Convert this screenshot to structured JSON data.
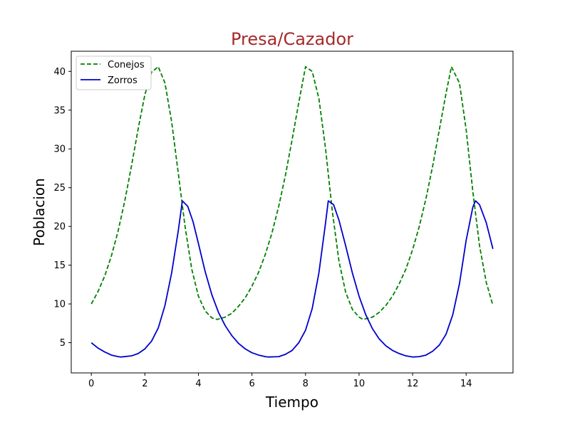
{
  "chart_data": {
    "type": "line",
    "title": "Presa/Cazador",
    "title_color": "#a52a2a",
    "xlabel": "Tiempo",
    "ylabel": "Poblacion",
    "xlim": [
      -0.75,
      15.75
    ],
    "ylim": [
      1.1,
      42.6
    ],
    "xticks": [
      0,
      2,
      4,
      6,
      8,
      10,
      12,
      14
    ],
    "yticks": [
      5,
      10,
      15,
      20,
      25,
      30,
      35,
      40
    ],
    "grid": false,
    "legend_position": "top-left",
    "series": [
      {
        "name": "Conejos",
        "color": "#008000",
        "style": "dashed",
        "points": [
          [
            0,
            10.0
          ],
          [
            0.25,
            11.6
          ],
          [
            0.5,
            13.6
          ],
          [
            0.75,
            16.2
          ],
          [
            1.0,
            19.4
          ],
          [
            1.25,
            23.3
          ],
          [
            1.5,
            27.8
          ],
          [
            1.75,
            32.6
          ],
          [
            2.0,
            37.0
          ],
          [
            2.25,
            39.9
          ],
          [
            2.5,
            40.6
          ],
          [
            2.75,
            38.5
          ],
          [
            3.0,
            33.5
          ],
          [
            3.25,
            26.8
          ],
          [
            3.5,
            20.0
          ],
          [
            3.75,
            14.5
          ],
          [
            4.0,
            11.0
          ],
          [
            4.25,
            9.1
          ],
          [
            4.5,
            8.2
          ],
          [
            4.7,
            8.0
          ],
          [
            5.0,
            8.3
          ],
          [
            5.25,
            8.8
          ],
          [
            5.5,
            9.7
          ],
          [
            5.75,
            10.8
          ],
          [
            6.0,
            12.3
          ],
          [
            6.25,
            14.1
          ],
          [
            6.5,
            16.4
          ],
          [
            6.75,
            19.2
          ],
          [
            7.0,
            22.6
          ],
          [
            7.25,
            26.6
          ],
          [
            7.5,
            31.2
          ],
          [
            7.75,
            36.0
          ],
          [
            8.0,
            40.6
          ],
          [
            8.25,
            40.0
          ],
          [
            8.5,
            36.5
          ],
          [
            8.75,
            30.0
          ],
          [
            9.0,
            22.0
          ],
          [
            9.25,
            15.5
          ],
          [
            9.5,
            11.5
          ],
          [
            9.75,
            9.3
          ],
          [
            10.0,
            8.3
          ],
          [
            10.15,
            8.0
          ],
          [
            10.5,
            8.3
          ],
          [
            10.75,
            8.9
          ],
          [
            11.0,
            9.8
          ],
          [
            11.25,
            11.0
          ],
          [
            11.5,
            12.6
          ],
          [
            11.75,
            14.5
          ],
          [
            12.0,
            17.0
          ],
          [
            12.25,
            20.0
          ],
          [
            12.5,
            23.6
          ],
          [
            12.75,
            27.8
          ],
          [
            13.0,
            32.5
          ],
          [
            13.25,
            37.2
          ],
          [
            13.45,
            40.6
          ],
          [
            13.75,
            38.5
          ],
          [
            14.0,
            32.5
          ],
          [
            14.25,
            24.5
          ],
          [
            14.5,
            17.5
          ],
          [
            14.75,
            12.8
          ],
          [
            15.0,
            9.8
          ]
        ]
      },
      {
        "name": "Zorros",
        "color": "#0000cd",
        "style": "solid",
        "points": [
          [
            0,
            5.0
          ],
          [
            0.25,
            4.3
          ],
          [
            0.5,
            3.8
          ],
          [
            0.75,
            3.4
          ],
          [
            1.0,
            3.2
          ],
          [
            1.1,
            3.15
          ],
          [
            1.5,
            3.3
          ],
          [
            1.75,
            3.6
          ],
          [
            2.0,
            4.2
          ],
          [
            2.25,
            5.2
          ],
          [
            2.5,
            6.9
          ],
          [
            2.75,
            9.8
          ],
          [
            3.0,
            14.0
          ],
          [
            3.25,
            19.5
          ],
          [
            3.4,
            23.3
          ],
          [
            3.6,
            22.6
          ],
          [
            3.8,
            20.6
          ],
          [
            4.0,
            17.8
          ],
          [
            4.25,
            14.2
          ],
          [
            4.5,
            11.2
          ],
          [
            4.75,
            8.9
          ],
          [
            5.0,
            7.2
          ],
          [
            5.25,
            5.9
          ],
          [
            5.5,
            4.9
          ],
          [
            5.75,
            4.2
          ],
          [
            6.0,
            3.7
          ],
          [
            6.25,
            3.4
          ],
          [
            6.5,
            3.2
          ],
          [
            6.6,
            3.15
          ],
          [
            7.0,
            3.2
          ],
          [
            7.25,
            3.5
          ],
          [
            7.5,
            4.0
          ],
          [
            7.75,
            5.0
          ],
          [
            8.0,
            6.6
          ],
          [
            8.25,
            9.4
          ],
          [
            8.5,
            14.0
          ],
          [
            8.75,
            20.5
          ],
          [
            8.85,
            23.3
          ],
          [
            9.05,
            22.8
          ],
          [
            9.25,
            20.8
          ],
          [
            9.5,
            17.5
          ],
          [
            9.75,
            14.0
          ],
          [
            10.0,
            11.0
          ],
          [
            10.25,
            8.6
          ],
          [
            10.5,
            6.8
          ],
          [
            10.75,
            5.5
          ],
          [
            11.0,
            4.6
          ],
          [
            11.25,
            4.0
          ],
          [
            11.5,
            3.6
          ],
          [
            11.75,
            3.3
          ],
          [
            12.0,
            3.15
          ],
          [
            12.25,
            3.2
          ],
          [
            12.5,
            3.4
          ],
          [
            12.75,
            3.9
          ],
          [
            13.0,
            4.7
          ],
          [
            13.25,
            6.1
          ],
          [
            13.5,
            8.6
          ],
          [
            13.75,
            12.6
          ],
          [
            14.0,
            18.2
          ],
          [
            14.25,
            22.5
          ],
          [
            14.35,
            23.3
          ],
          [
            14.5,
            22.8
          ],
          [
            14.75,
            20.5
          ],
          [
            15.0,
            17.1
          ]
        ]
      }
    ]
  }
}
